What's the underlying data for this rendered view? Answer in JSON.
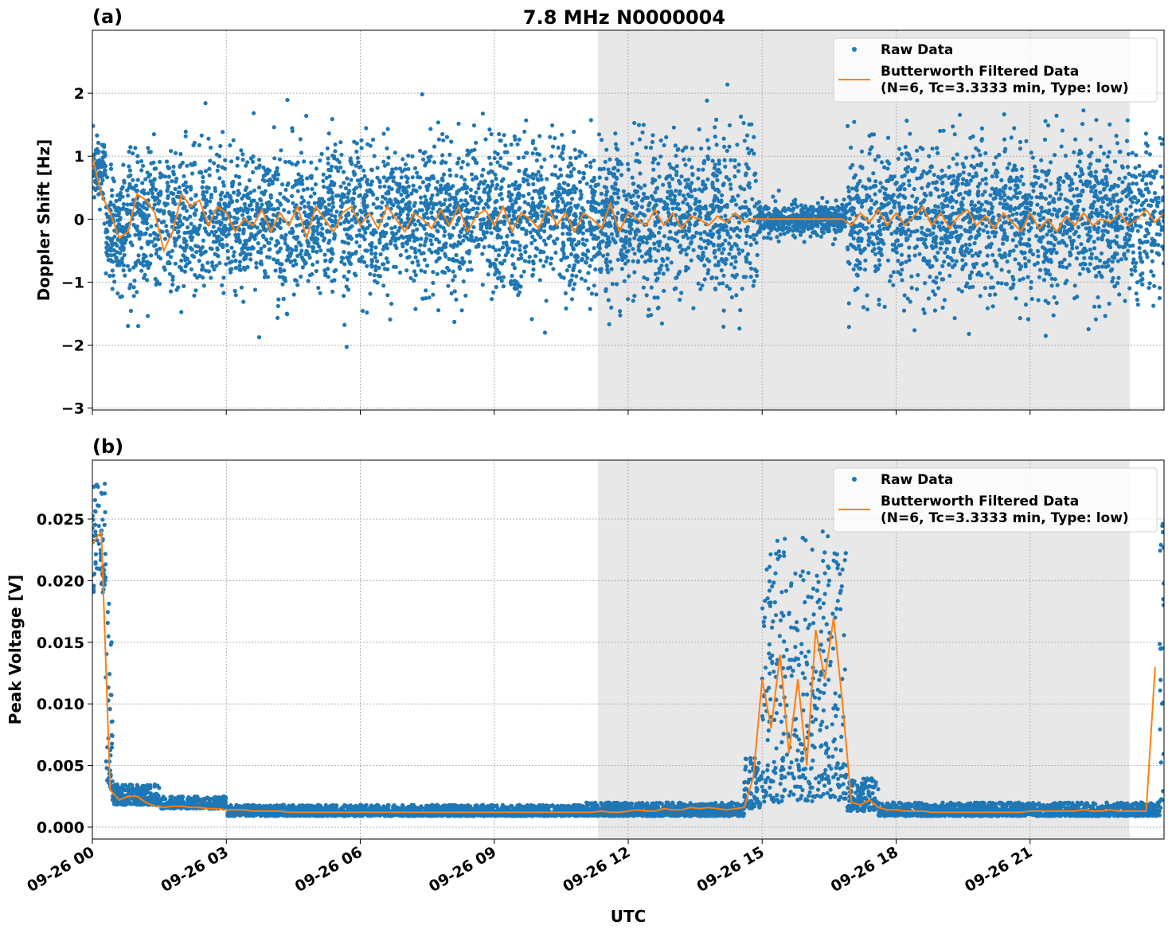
{
  "chart_data": {
    "type": "scatter",
    "title": "7.8 MHz N0000004",
    "xlabel": "UTC",
    "x_ticks": [
      "09-26 00",
      "09-26 03",
      "09-26 06",
      "09-26 09",
      "09-26 12",
      "09-26 15",
      "09-26 18",
      "09-26 21"
    ],
    "x_tick_hours": [
      0,
      3,
      6,
      9,
      12,
      15,
      18,
      21
    ],
    "xlim_hours": [
      0,
      24
    ],
    "grid": true,
    "shaded_interval_hours": [
      11.32,
      23.23
    ],
    "colors": {
      "raw": "#1f77b4",
      "filtered": "#ff7f0e",
      "shade": "#e8e8e8"
    },
    "panels": [
      {
        "label": "(a)",
        "ylabel": "Doppler Shift [Hz]",
        "ylim": [
          -3.03,
          3.0
        ],
        "y_ticks": [
          2,
          1,
          0,
          -1,
          -2,
          -3
        ],
        "y_tick_labels": [
          "2",
          "1",
          "0",
          "−1",
          "−2",
          "−3"
        ],
        "legend": {
          "placement": "top-right",
          "raw": "Raw Data",
          "filtered_line1": "Butterworth Filtered Data",
          "filtered_line2": "(N=6, Tc=3.3333 min, Type: low)"
        },
        "raw_segments": [
          {
            "from": 0,
            "to": 0.3,
            "center": 0.8,
            "sigma": 0.25
          },
          {
            "from": 0.3,
            "to": 0.8,
            "center": -0.2,
            "sigma": 0.45
          },
          {
            "from": 0.8,
            "to": 2.0,
            "center": 0.0,
            "sigma": 0.6
          },
          {
            "from": 2.0,
            "to": 14.9,
            "center": 0.0,
            "sigma": 0.6
          },
          {
            "from": 14.9,
            "to": 16.9,
            "center": 0.0,
            "sigma": 0.12
          },
          {
            "from": 16.9,
            "to": 24.0,
            "center": 0.0,
            "sigma": 0.6
          }
        ],
        "filtered": {
          "x_start_hours": 0,
          "x_step_hours": 0.2,
          "values": [
            1.0,
            0.4,
            0.1,
            -0.3,
            -0.2,
            0.4,
            0.3,
            0.1,
            -0.5,
            -0.2,
            0.4,
            0.2,
            0.3,
            -0.1,
            0.2,
            0.1,
            -0.2,
            0.0,
            -0.1,
            0.15,
            -0.2,
            0.1,
            -0.1,
            0.2,
            -0.3,
            0.2,
            0.0,
            -0.2,
            0.1,
            0.2,
            -0.1,
            0.1,
            -0.15,
            0.2,
            0.0,
            -0.2,
            0.1,
            0.0,
            -0.15,
            0.15,
            -0.1,
            0.2,
            -0.2,
            0.05,
            0.15,
            -0.1,
            0.2,
            -0.2,
            0.1,
            0.0,
            -0.15,
            0.2,
            -0.1,
            0.1,
            -0.2,
            0.1,
            0.0,
            -0.15,
            0.25,
            -0.2,
            0.1,
            0.0,
            -0.1,
            0.15,
            -0.1,
            0.1,
            -0.15,
            0.05,
            0.0,
            -0.1,
            0.05,
            -0.05,
            0.1,
            -0.05,
            0.0,
            0.0,
            0.0,
            0.0,
            0.0,
            0.0,
            0.0,
            0.0,
            0.0,
            0.0,
            0.0,
            -0.1,
            0.1,
            -0.05,
            0.15,
            -0.1,
            0.1,
            -0.1,
            0.05,
            0.2,
            -0.1,
            0.1,
            -0.15,
            0.05,
            0.15,
            -0.1,
            0.05,
            -0.15,
            0.1,
            -0.05,
            -0.2,
            0.1,
            -0.15,
            0.0,
            -0.2,
            0.05,
            -0.1,
            0.1,
            -0.1,
            0.0,
            -0.05,
            0.1,
            -0.1,
            0.0,
            0.15,
            -0.05,
            0.1
          ]
        }
      },
      {
        "label": "(b)",
        "ylabel": "Peak Voltage [V]",
        "ylim": [
          -0.00097,
          0.02978
        ],
        "y_ticks": [
          0.025,
          0.02,
          0.015,
          0.01,
          0.005,
          0.0
        ],
        "y_tick_labels": [
          "0.025",
          "0.020",
          "0.015",
          "0.010",
          "0.005",
          "0.000"
        ],
        "legend": {
          "placement": "top-right",
          "raw": "Raw Data",
          "filtered_line1": "Butterworth Filtered Data",
          "filtered_line2": "(N=6, Tc=3.3333 min, Type: low)"
        },
        "raw_segments": [
          {
            "from": 0,
            "to": 0.3,
            "lo": 0.019,
            "hi": 0.028
          },
          {
            "from": 0.3,
            "to": 0.45,
            "lo": 0.003,
            "hi": 0.02
          },
          {
            "from": 0.45,
            "to": 1.5,
            "lo": 0.0018,
            "hi": 0.0035
          },
          {
            "from": 1.5,
            "to": 3.0,
            "lo": 0.0015,
            "hi": 0.0025
          },
          {
            "from": 3.0,
            "to": 11.0,
            "lo": 0.0009,
            "hi": 0.0018
          },
          {
            "from": 11.0,
            "to": 14.6,
            "lo": 0.0009,
            "hi": 0.002
          },
          {
            "from": 14.6,
            "to": 15.0,
            "lo": 0.0015,
            "hi": 0.006
          },
          {
            "from": 15.0,
            "to": 16.9,
            "lo": 0.002,
            "hi": 0.024
          },
          {
            "from": 16.9,
            "to": 17.6,
            "lo": 0.0013,
            "hi": 0.004
          },
          {
            "from": 17.6,
            "to": 23.9,
            "lo": 0.0009,
            "hi": 0.002
          },
          {
            "from": 23.9,
            "to": 24.0,
            "lo": 0.001,
            "hi": 0.025
          }
        ],
        "filtered": {
          "x_start_hours": 0,
          "x_step_hours": 0.2,
          "values": [
            0.023,
            0.024,
            0.003,
            0.0022,
            0.0025,
            0.0025,
            0.002,
            0.0017,
            0.0016,
            0.0017,
            0.0017,
            0.0016,
            0.0016,
            0.0015,
            0.0015,
            0.0014,
            0.0014,
            0.0014,
            0.0013,
            0.0013,
            0.0013,
            0.0013,
            0.0012,
            0.0012,
            0.0012,
            0.0012,
            0.0012,
            0.0012,
            0.0012,
            0.0012,
            0.0012,
            0.0012,
            0.0012,
            0.0012,
            0.0012,
            0.0012,
            0.0012,
            0.0012,
            0.0012,
            0.0012,
            0.0012,
            0.0012,
            0.0012,
            0.0012,
            0.0012,
            0.0012,
            0.0012,
            0.0012,
            0.0012,
            0.0012,
            0.0012,
            0.0012,
            0.0012,
            0.0012,
            0.0012,
            0.0012,
            0.0012,
            0.0013,
            0.0012,
            0.0012,
            0.0013,
            0.0014,
            0.0013,
            0.0013,
            0.0015,
            0.0014,
            0.0014,
            0.0016,
            0.0015,
            0.0016,
            0.0015,
            0.0014,
            0.0015,
            0.0016,
            0.004,
            0.012,
            0.008,
            0.014,
            0.006,
            0.012,
            0.005,
            0.016,
            0.012,
            0.017,
            0.01,
            0.002,
            0.0018,
            0.0022,
            0.0016,
            0.0014,
            0.0014,
            0.0013,
            0.0013,
            0.0013,
            0.0012,
            0.0012,
            0.0012,
            0.0012,
            0.0012,
            0.0012,
            0.0012,
            0.0012,
            0.0012,
            0.0012,
            0.0012,
            0.0013,
            0.0013,
            0.0013,
            0.0013,
            0.0013,
            0.0013,
            0.0014,
            0.0013,
            0.0013,
            0.0014,
            0.0013,
            0.0013,
            0.0013,
            0.0013,
            0.013
          ]
        }
      }
    ]
  }
}
